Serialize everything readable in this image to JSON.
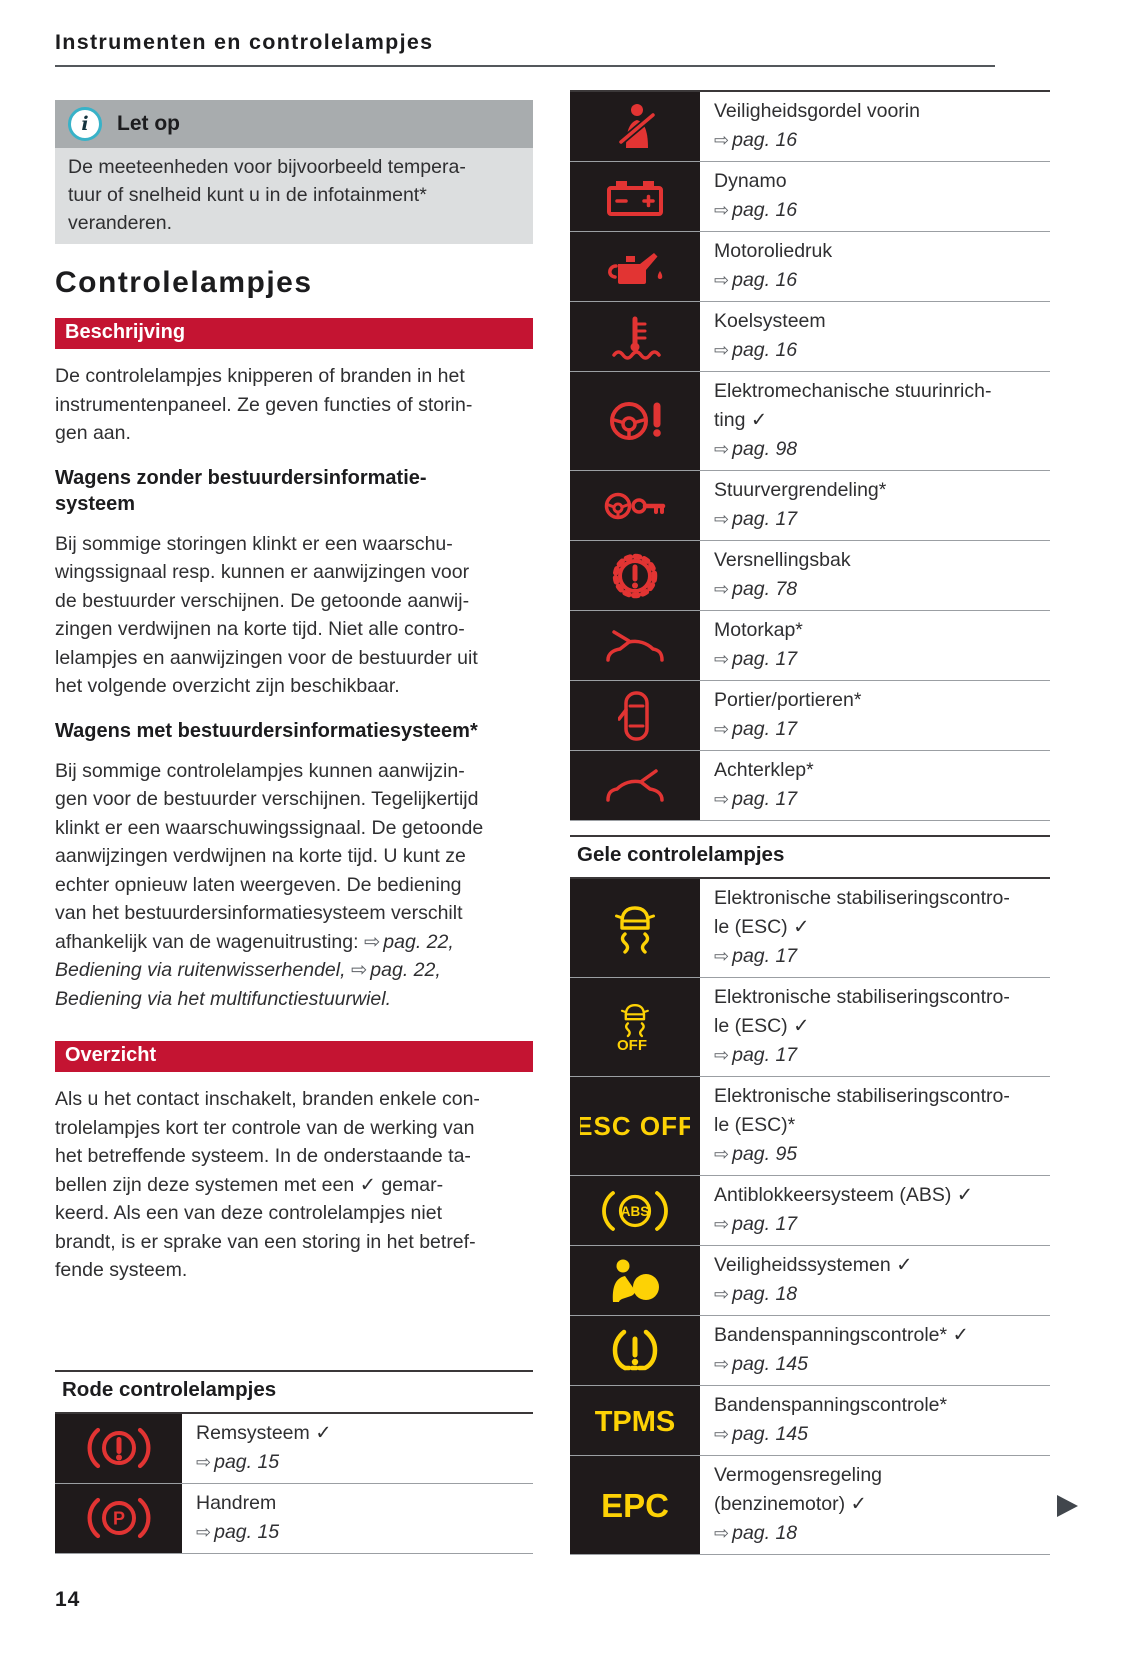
{
  "symbols": {
    "arrow": "⇨",
    "check": "✓"
  },
  "header": {
    "title": "Instrumenten en controlelampjes"
  },
  "note": {
    "title": "Let op",
    "body_lines": [
      "De meeteenheden voor bijvoorbeeld tempera-",
      "tuur of snelheid kunt u in de infotainment*",
      "veranderen."
    ]
  },
  "main": {
    "heading": "Controlelampjes"
  },
  "beschrijving": {
    "banner": "Beschrijving",
    "para": [
      "De controlelampjes knipperen of branden in het",
      "instrumentenpaneel. Ze geven functies of storin-",
      "gen aan."
    ]
  },
  "zonder": {
    "heading_lines": [
      "Wagens zonder bestuurdersinformatie-",
      "systeem"
    ],
    "para": [
      "Bij sommige storingen klinkt er een waarschu-",
      "wingssignaal resp. kunnen er aanwijzingen voor",
      "de bestuurder verschijnen. De getoonde aanwij-",
      "zingen verdwijnen na korte tijd. Niet alle contro-",
      "lelampjes en aanwijzingen voor de bestuurder uit",
      "het volgende overzicht zijn beschikbaar."
    ]
  },
  "met": {
    "heading": "Wagens met bestuurdersinformatiesysteem*",
    "para": [
      "Bij sommige controlelampjes kunnen aanwijzin-",
      "gen voor de bestuurder verschijnen. Tegelijkertijd",
      "klinkt er een waarschuwingssignaal. De getoonde",
      "aanwijzingen verdwijnen na korte tijd. U kunt ze",
      "echter opnieuw laten weergeven. De bediening",
      "van het bestuurdersinformatiesysteem verschilt",
      [
        {
          "s": "r",
          "t": "afhankelijk van de wagenuitrusting: "
        },
        {
          "s": "arrow",
          "t": "⇨"
        },
        {
          "s": "i",
          "t": "pag. 22,"
        }
      ],
      [
        {
          "s": "i",
          "t": "Bediening via ruitenwisserhendel, "
        },
        {
          "s": "arrow",
          "t": "⇨"
        },
        {
          "s": "i",
          "t": "pag. 22,"
        }
      ],
      [
        {
          "s": "i",
          "t": "Bediening via het multifunctiestuurwiel."
        }
      ]
    ]
  },
  "overzicht": {
    "banner": "Overzicht",
    "para": [
      "Als u het contact inschakelt, branden enkele con-",
      "trolelampjes kort ter controle van de werking van",
      "het betreffende systeem. In de onderstaande ta-",
      "bellen zijn deze systemen met een ✓ gemar-",
      "keerd. Als een van deze controlelampjes niet",
      "brandt, is er sprake van een storing in het betref-",
      "fende systeem."
    ]
  },
  "red_table": {
    "heading": "Rode controlelampjes",
    "rows": [
      {
        "icon": "brake-warning-icon",
        "label_lines": [
          "Remsysteem ✓"
        ],
        "ref": "pag. 15"
      },
      {
        "icon": "handbrake-icon",
        "icon_text": "P",
        "label_lines": [
          "Handrem"
        ],
        "ref": "pag. 15"
      }
    ]
  },
  "right_red_table": {
    "rows": [
      {
        "icon": "seatbelt-icon",
        "label_lines": [
          "Veiligheidsgordel voorin"
        ],
        "ref": "pag. 16"
      },
      {
        "icon": "battery-icon",
        "label_lines": [
          "Dynamo"
        ],
        "ref": "pag. 16"
      },
      {
        "icon": "oil-pressure-icon",
        "label_lines": [
          "Motoroliedruk"
        ],
        "ref": "pag. 16"
      },
      {
        "icon": "coolant-icon",
        "label_lines": [
          "Koelsysteem"
        ],
        "ref": "pag. 16"
      },
      {
        "icon": "steering-warning-icon",
        "label_lines": [
          "Elektromechanische stuurinrich-",
          "ting ✓"
        ],
        "ref": "pag. 98"
      },
      {
        "icon": "steering-lock-icon",
        "label_lines": [
          "Stuurvergrendeling*"
        ],
        "ref": "pag. 17"
      },
      {
        "icon": "gearbox-warning-icon",
        "label_lines": [
          "Versnellingsbak"
        ],
        "ref": "pag. 78"
      },
      {
        "icon": "bonnet-icon",
        "label_lines": [
          "Motorkap*"
        ],
        "ref": "pag. 17"
      },
      {
        "icon": "door-open-icon",
        "label_lines": [
          "Portier/portieren*"
        ],
        "ref": "pag. 17"
      },
      {
        "icon": "tailgate-icon",
        "label_lines": [
          "Achterklep*"
        ],
        "ref": "pag. 17"
      }
    ]
  },
  "yellow_table": {
    "heading": "Gele controlelampjes",
    "rows": [
      {
        "icon": "esc-icon",
        "label_lines": [
          "Elektronische stabiliseringscontro-",
          "le (ESC) ✓"
        ],
        "ref": "pag. 17"
      },
      {
        "icon": "esc-off-icon",
        "icon_text": "OFF",
        "label_lines": [
          "Elektronische stabiliseringscontro-",
          "le (ESC) ✓"
        ],
        "ref": "pag. 17"
      },
      {
        "icon": "esc-off-text",
        "icon_text": "ESC OFF",
        "label_lines": [
          "Elektronische stabiliseringscontro-",
          "le (ESC)*"
        ],
        "ref": "pag. 95"
      },
      {
        "icon": "abs-icon",
        "icon_text": "ABS",
        "label_lines": [
          "Antiblokkeersysteem (ABS) ✓"
        ],
        "ref": "pag. 17"
      },
      {
        "icon": "airbag-icon",
        "label_lines": [
          "Veiligheidssystemen ✓"
        ],
        "ref": "pag. 18"
      },
      {
        "icon": "tpms-warning-icon",
        "label_lines": [
          "Bandenspanningscontrole* ✓"
        ],
        "ref": "pag. 145"
      },
      {
        "icon": "tpms-text",
        "icon_text": "TPMS",
        "label_lines": [
          "Bandenspanningscontrole*"
        ],
        "ref": "pag. 145"
      },
      {
        "icon": "epc-text",
        "icon_text": "EPC",
        "label_lines": [
          "Vermogensregeling",
          "(benzinemotor) ✓"
        ],
        "ref": "pag. 18"
      }
    ]
  },
  "footer": {
    "page_number": "14"
  },
  "colors": {
    "banner_red": "#c41432",
    "icon_red": "#e23433",
    "icon_yellow": "#fdd205",
    "cell_black": "#1f1a1b",
    "note_header_gray": "#a8acae",
    "note_body_gray": "#dcdedf",
    "info_badge_cyan": "#38b2c8"
  }
}
